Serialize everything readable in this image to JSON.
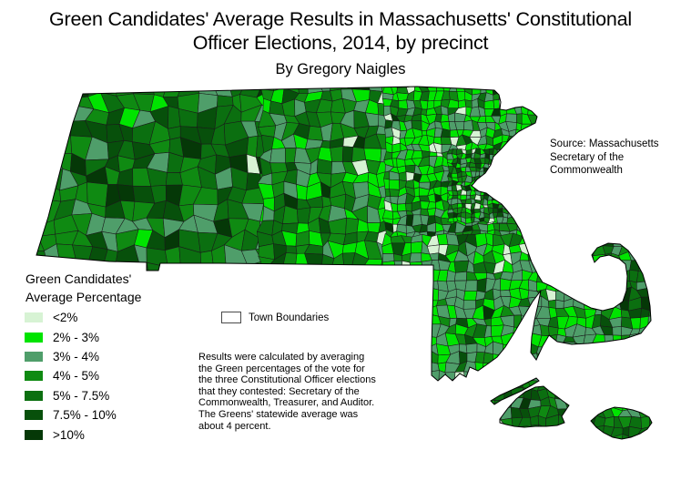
{
  "title": {
    "text": "Green Candidates' Average Results in Massachusetts' Constitutional\nOfficer Elections, 2014, by precinct",
    "byline": "By Gregory Naigles"
  },
  "source_note": "Source: Massachusetts\nSecretary of the\nCommonwealth",
  "legend": {
    "title": "Green Candidates'\nAverage Percentage",
    "items": [
      {
        "label": "<2%",
        "color": "#d7f3d4"
      },
      {
        "label": "2% - 3%",
        "color": "#00e400"
      },
      {
        "label": "3% - 4%",
        "color": "#4f9e6a"
      },
      {
        "label": "4% - 5%",
        "color": "#0f8a12"
      },
      {
        "label": "5% - 7.5%",
        "color": "#0b6f10"
      },
      {
        "label": "7.5% - 10%",
        "color": "#07500b"
      },
      {
        "label": ">10%",
        "color": "#053807"
      }
    ],
    "town_boundaries_label": "Town Boundaries",
    "town_boundaries_fill": "#ffffff",
    "town_boundaries_border": "#4a4a4a"
  },
  "methodology_note": "Results were calculated by averaging\nthe Green percentages of the vote for\nthe three Constitutional Officer elections\nthat they contested: Secretary of the\nCommonwealth, Treasurer, and Auditor.\nThe Greens' statewide average was\nabout 4 percent.",
  "map": {
    "region": "Massachusetts",
    "unit": "precinct",
    "background": "#ffffff",
    "boundary_color": "#000000",
    "precinct_line_color": "#1a1a1a"
  }
}
